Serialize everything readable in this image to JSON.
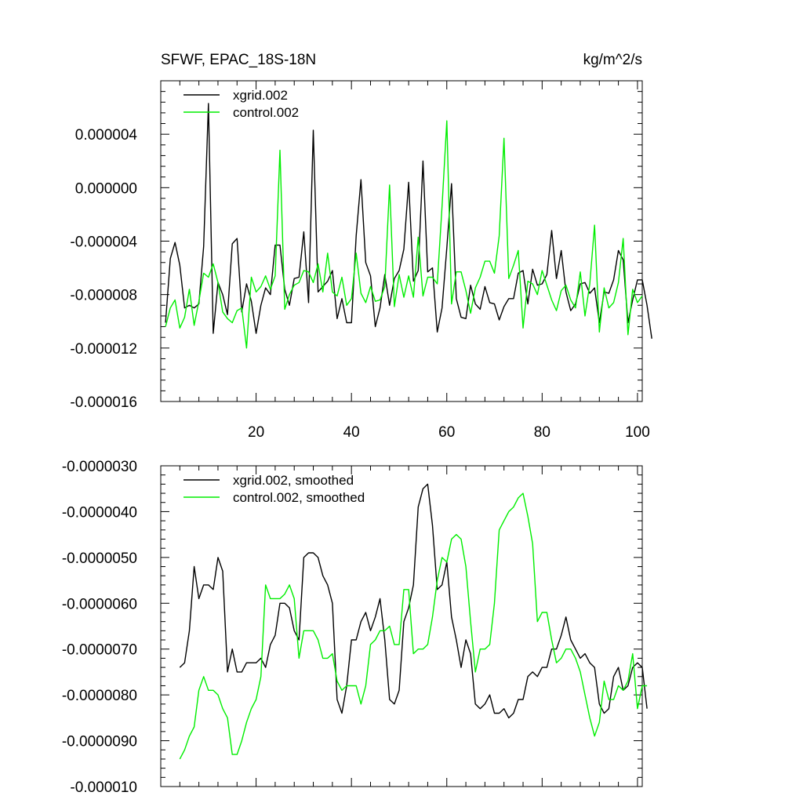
{
  "chart_data": [
    {
      "type": "line",
      "title": "SFWF, EPAC_18S-18N",
      "units": "kg/m^2/s",
      "xlabel": "",
      "ylabel": "",
      "xlim": [
        0,
        101
      ],
      "ylim": [
        -1.6e-05,
        8e-06
      ],
      "x_ticks": [
        20,
        40,
        60,
        80,
        100
      ],
      "x_tick_labels": [
        "20",
        "40",
        "60",
        "80",
        "100"
      ],
      "y_ticks": [
        4e-06,
        0.0,
        -4e-06,
        -8e-06,
        -1.2e-05,
        -1.6e-05
      ],
      "y_tick_labels": [
        "0.000004",
        "0.000000",
        "-0.000004",
        "-0.000008",
        "-0.000012",
        "-0.000016"
      ],
      "legend_position": "top-left",
      "series": [
        {
          "name": "xgrid.002",
          "color": "#000000",
          "x_start": 1,
          "values": [
            -1.01e-05,
            -5.3e-06,
            -4.1e-06,
            -5.8e-06,
            -9e-06,
            -8.8e-06,
            -9e-06,
            -8.7e-06,
            -4.4e-06,
            6.3e-06,
            -1.09e-05,
            -7.1e-06,
            -8e-06,
            -9.5e-06,
            -4.2e-06,
            -3.8e-06,
            -9.3e-06,
            -7.2e-06,
            -8.5e-06,
            -1.09e-05,
            -8.8e-06,
            -7.5e-06,
            -8e-06,
            -4.3e-06,
            -4.3e-06,
            -7.6e-06,
            -8.8e-06,
            -6.8e-06,
            -6.7e-06,
            -3.3e-06,
            -8.6e-06,
            4.3e-06,
            -7.8e-06,
            -7.4e-06,
            -7e-06,
            -6.2e-06,
            -9.8e-06,
            -8.3e-06,
            -1.01e-05,
            -1.01e-05,
            -3.6e-06,
            6e-07,
            -5.6e-06,
            -6.6e-06,
            -1.04e-05,
            -9e-06,
            -6.5e-06,
            -8.8e-06,
            -6.8e-06,
            -6.2e-06,
            -4.6e-06,
            4e-07,
            -7e-06,
            -6.2e-06,
            2e-06,
            -6.3e-06,
            -6e-06,
            -1.08e-05,
            -9e-06,
            -4.5e-06,
            3e-07,
            -8.3e-06,
            -9.7e-06,
            -9.8e-06,
            -7.3e-06,
            -8.7e-06,
            -9.1e-06,
            -7.4e-06,
            -8.6e-06,
            -8.7e-06,
            -9.9e-06,
            -8.9e-06,
            -8.3e-06,
            -8.3e-06,
            -6.4e-06,
            -6.2e-06,
            -8.7e-06,
            -6.1e-06,
            -7.3e-06,
            -7.2e-06,
            -6.5e-06,
            -3.2e-06,
            -6.8e-06,
            -4.7e-06,
            -7.8e-06,
            -9.2e-06,
            -8.7e-06,
            -7.2e-06,
            -7.1e-06,
            -7.9e-06,
            -7.5e-06,
            -1.01e-05,
            -7.8e-06,
            -7.9e-06,
            -6.9e-06,
            -4.7e-06,
            -5.4e-06,
            -1.01e-05,
            -8.4e-06,
            -6.9e-06,
            -6.9e-06,
            -8.8e-06,
            -1.13e-05
          ]
        },
        {
          "name": "control.002",
          "color": "#00ee00",
          "x_start": 1,
          "values": [
            -1.04e-05,
            -9e-06,
            -8.4e-06,
            -1.05e-05,
            -9.7e-06,
            -7.6e-06,
            -1.03e-05,
            -8.5e-06,
            -6.4e-06,
            -6.7e-06,
            -5.7e-06,
            -7.1e-06,
            -9.3e-06,
            -9.8e-06,
            -1.01e-05,
            -9.2e-06,
            -9e-06,
            -1.2e-05,
            -6.7e-06,
            -7.8e-06,
            -7.4e-06,
            -6.6e-06,
            -7.6e-06,
            -6.6e-06,
            2.8e-06,
            -9.1e-06,
            -8e-06,
            -7.3e-06,
            -7.1e-06,
            -6.2e-06,
            -6.3e-06,
            -7.1e-06,
            -5.7e-06,
            -7.8e-06,
            -4.9e-06,
            -7.8e-06,
            -8.1e-06,
            -6.7e-06,
            -8.8e-06,
            -8.3e-06,
            -4.9e-06,
            -7.9e-06,
            -8.6e-06,
            -7.4e-06,
            -8.5e-06,
            -8.4e-06,
            -7.4e-06,
            2e-07,
            -8.9e-06,
            -6.5e-06,
            -8.2e-06,
            -6.6e-06,
            -8.2e-06,
            -3.7e-06,
            -8.1e-06,
            -6.7e-06,
            -6.7e-06,
            -7.2e-06,
            -1.4e-06,
            5e-06,
            -8.7e-06,
            -6.3e-06,
            -6.3e-06,
            -7.7e-06,
            -9.4e-06,
            -7.5e-06,
            -6.7e-06,
            -5.5e-06,
            -5.5e-06,
            -6.4e-06,
            -3.6e-06,
            3.7e-06,
            -6.8e-06,
            -5.8e-06,
            -4.7e-06,
            -1.05e-05,
            -7e-06,
            -7.2e-06,
            -8e-06,
            -6.2e-06,
            -7.3e-06,
            -8.4e-06,
            -9.2e-06,
            -7.7e-06,
            -7.3e-06,
            -8.4e-06,
            -9e-06,
            -6.3e-06,
            -9.6e-06,
            -7.2e-06,
            -2.8e-06,
            -1.08e-05,
            -7.5e-06,
            -9e-06,
            -8.6e-06,
            -7.1e-06,
            -3.8e-06,
            -1.1e-05,
            -7.6e-06,
            -8.6e-06,
            -8.1e-06
          ]
        }
      ]
    },
    {
      "type": "line",
      "title": "",
      "xlabel": "",
      "ylabel": "",
      "xlim": [
        0,
        101
      ],
      "ylim": [
        -1e-05,
        -3e-06
      ],
      "x_ticks": [
        20,
        40,
        60,
        80,
        100
      ],
      "y_ticks": [
        -3e-06,
        -4e-06,
        -5e-06,
        -6e-06,
        -7e-06,
        -8e-06,
        -9e-06,
        -1e-05
      ],
      "y_tick_labels": [
        "-0.0000030",
        "-0.0000040",
        "-0.0000050",
        "-0.0000060",
        "-0.0000070",
        "-0.0000080",
        "-0.0000090",
        "-0.000010"
      ],
      "legend_position": "top-left",
      "series": [
        {
          "name": "xgrid.002, smoothed",
          "color": "#000000",
          "x_start": 4,
          "values": [
            -7.4e-06,
            -7.3e-06,
            -6.6e-06,
            -5.2e-06,
            -5.9e-06,
            -5.6e-06,
            -5.6e-06,
            -5.7e-06,
            -5e-06,
            -5.3e-06,
            -7.5e-06,
            -7e-06,
            -7.5e-06,
            -7.5e-06,
            -7.3e-06,
            -7.3e-06,
            -7.3e-06,
            -7.2e-06,
            -7.4e-06,
            -6.9e-06,
            -6.7e-06,
            -6e-06,
            -6e-06,
            -6.1e-06,
            -6.6e-06,
            -6.8e-06,
            -5e-06,
            -4.9e-06,
            -4.9e-06,
            -5e-06,
            -5.4e-06,
            -5.6e-06,
            -6e-06,
            -8.1e-06,
            -8.4e-06,
            -7.8e-06,
            -6.8e-06,
            -6.8e-06,
            -6.4e-06,
            -6.2e-06,
            -6.6e-06,
            -6.3e-06,
            -5.9e-06,
            -6.8e-06,
            -8.1e-06,
            -8.2e-06,
            -7.9e-06,
            -6.4e-06,
            -6.1e-06,
            -5.6e-06,
            -3.9e-06,
            -3.5e-06,
            -3.4e-06,
            -4.3e-06,
            -5.7e-06,
            -5.6e-06,
            -5.1e-06,
            -6.3e-06,
            -6.8e-06,
            -7.4e-06,
            -6.8e-06,
            -7.1e-06,
            -8.2e-06,
            -8.3e-06,
            -8.2e-06,
            -8e-06,
            -8.4e-06,
            -8.4e-06,
            -8.3e-06,
            -8.5e-06,
            -8.4e-06,
            -8.1e-06,
            -8.1e-06,
            -7.6e-06,
            -7.5e-06,
            -7.6e-06,
            -7.4e-06,
            -7.4e-06,
            -7e-06,
            -7e-06,
            -6.7e-06,
            -6.3e-06,
            -6.8e-06,
            -7e-06,
            -7.2e-06,
            -7.1e-06,
            -7.3e-06,
            -7.4e-06,
            -8.2e-06,
            -8.4e-06,
            -8.3e-06,
            -7.6e-06,
            -7.4e-06,
            -7.9e-06,
            -7.8e-06,
            -7.4e-06,
            -7.3e-06,
            -7.4e-06,
            -8.3e-06
          ]
        },
        {
          "name": "control.002, smoothed",
          "color": "#00ee00",
          "x_start": 4,
          "values": [
            -9.4e-06,
            -9.2e-06,
            -8.9e-06,
            -8.7e-06,
            -7.9e-06,
            -7.6e-06,
            -7.9e-06,
            -7.9e-06,
            -8e-06,
            -8.3e-06,
            -8.5e-06,
            -9.3e-06,
            -9.3e-06,
            -9e-06,
            -8.6e-06,
            -8.3e-06,
            -8.1e-06,
            -7.6e-06,
            -5.6e-06,
            -5.9e-06,
            -5.9e-06,
            -5.9e-06,
            -5.8e-06,
            -5.6e-06,
            -5.9e-06,
            -7.2e-06,
            -6.6e-06,
            -6.6e-06,
            -6.6e-06,
            -6.8e-06,
            -7.2e-06,
            -7.2e-06,
            -7.1e-06,
            -7.7e-06,
            -7.9e-06,
            -7.8e-06,
            -7.8e-06,
            -7.8e-06,
            -8.2e-06,
            -7.8e-06,
            -6.9e-06,
            -6.8e-06,
            -6.6e-06,
            -6.6e-06,
            -6.5e-06,
            -6.9e-06,
            -6.9e-06,
            -5.7e-06,
            -5.7e-06,
            -7.1e-06,
            -7e-06,
            -7e-06,
            -6.9e-06,
            -6.3e-06,
            -5.5e-06,
            -5e-06,
            -5.1e-06,
            -4.6e-06,
            -4.5e-06,
            -4.6e-06,
            -5.2e-06,
            -6.4e-06,
            -7.5e-06,
            -7e-06,
            -7e-06,
            -6.9e-06,
            -6e-06,
            -4.4e-06,
            -4.2e-06,
            -4e-06,
            -3.9e-06,
            -3.7e-06,
            -3.6e-06,
            -4.1e-06,
            -4.7e-06,
            -6.4e-06,
            -6.2e-06,
            -6.2e-06,
            -6.8e-06,
            -7.3e-06,
            -7.2e-06,
            -7e-06,
            -7e-06,
            -7.2e-06,
            -7.5e-06,
            -8e-06,
            -8.5e-06,
            -8.9e-06,
            -8.6e-06,
            -7.7e-06,
            -8.1e-06,
            -8.1e-06,
            -7.8e-06,
            -7.9e-06,
            -7.7e-06,
            -7.1e-06,
            -8.3e-06,
            -7.8e-06,
            -7.8e-06
          ]
        }
      ]
    }
  ]
}
